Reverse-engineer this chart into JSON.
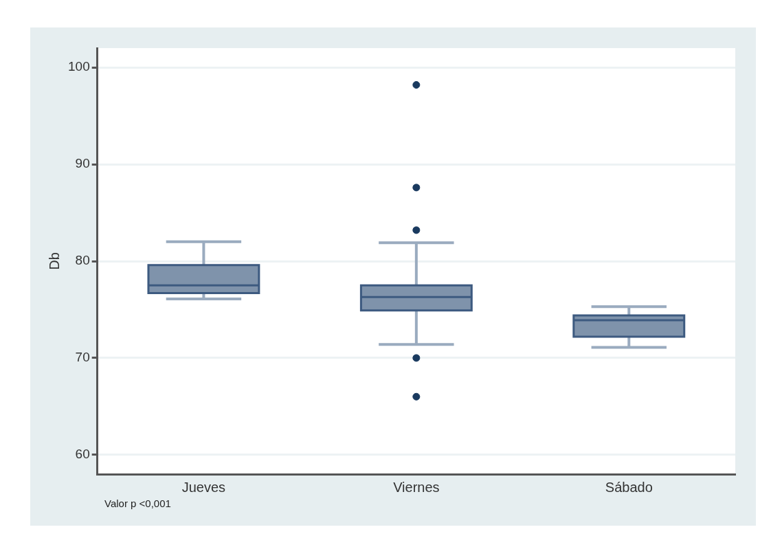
{
  "chart_data": {
    "type": "box",
    "ylabel": "Db",
    "categories": [
      "Jueves",
      "Viernes",
      "Sábado"
    ],
    "boxes": [
      {
        "low": 76.1,
        "q1": 76.7,
        "median": 77.5,
        "q3": 79.6,
        "high": 82.0
      },
      {
        "low": 71.4,
        "q1": 74.9,
        "median": 76.3,
        "q3": 77.5,
        "high": 81.9,
        "outliers": [
          98.2,
          87.6,
          83.2,
          70.0,
          66.0
        ]
      },
      {
        "low": 71.1,
        "q1": 72.2,
        "median": 73.9,
        "q3": 74.4,
        "high": 75.3
      }
    ],
    "color": "#7f93ab",
    "marker": "circle",
    "ylim": [
      58,
      102
    ],
    "yticks": [
      60,
      70,
      80,
      90,
      100
    ],
    "grid": "y",
    "annotations": [
      "Valor p <0,001"
    ]
  }
}
